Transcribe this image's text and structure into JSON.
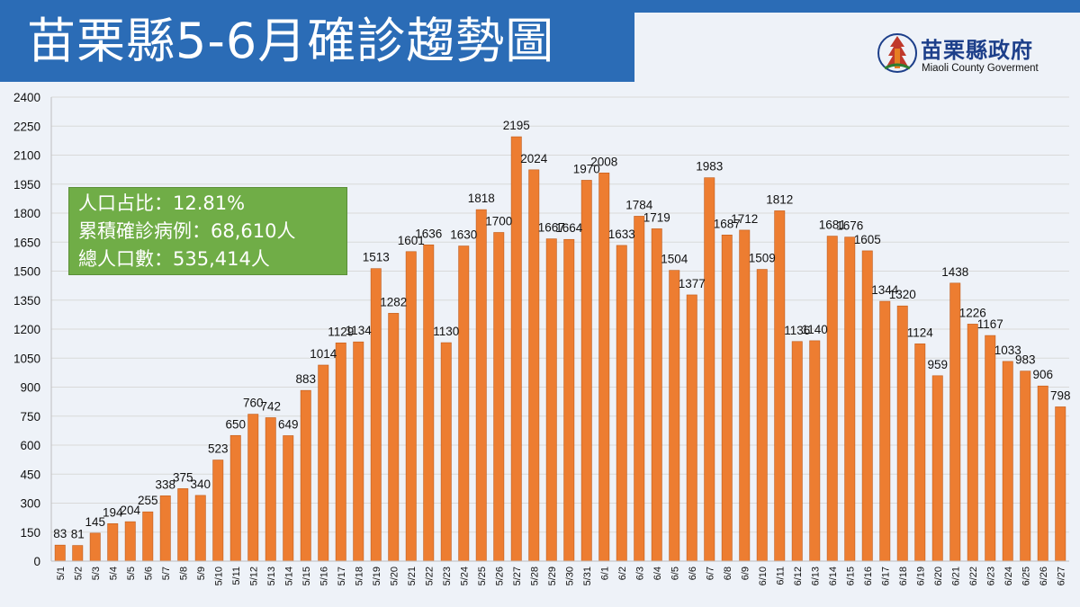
{
  "header": {
    "title": "苗栗縣5-6月確診趨勢圖",
    "logo_cn": "苗栗縣政府",
    "logo_en": "Miaoli County Goverment"
  },
  "info_box": {
    "line1": "人口占比：12.81%",
    "line2": "累積確診病例：68,610人",
    "line3": "總人口數：535,414人"
  },
  "colors": {
    "bar": "#ed7d31",
    "bar_stroke": "#c05a18",
    "title_bg": "#2b6cb6",
    "info_bg": "#70ad47",
    "grid": "#d9d9d9"
  },
  "chart_data": {
    "type": "bar",
    "title": "",
    "xlabel": "",
    "ylabel": "",
    "ylim": [
      0,
      2400
    ],
    "yticks": [
      0,
      150,
      300,
      450,
      600,
      750,
      900,
      1050,
      1200,
      1350,
      1500,
      1650,
      1800,
      1950,
      2100,
      2250,
      2400
    ],
    "grid": true,
    "categories": [
      "5/1",
      "5/2",
      "5/3",
      "5/4",
      "5/5",
      "5/6",
      "5/7",
      "5/8",
      "5/9",
      "5/10",
      "5/11",
      "5/12",
      "5/13",
      "5/14",
      "5/15",
      "5/16",
      "5/17",
      "5/18",
      "5/19",
      "5/20",
      "5/21",
      "5/22",
      "5/23",
      "5/24",
      "5/25",
      "5/26",
      "5/27",
      "5/28",
      "5/29",
      "5/30",
      "5/31",
      "6/1",
      "6/2",
      "6/3",
      "6/4",
      "6/5",
      "6/6",
      "6/7",
      "6/8",
      "6/9",
      "6/10",
      "6/11",
      "6/12",
      "6/13",
      "6/14",
      "6/15",
      "6/16",
      "6/17",
      "6/18",
      "6/19",
      "6/20",
      "6/21",
      "6/22",
      "6/23",
      "6/24",
      "6/25",
      "6/26",
      "6/27"
    ],
    "values": [
      83,
      81,
      145,
      194,
      204,
      255,
      338,
      375,
      340,
      523,
      650,
      760,
      742,
      649,
      883,
      1014,
      1129,
      1134,
      1513,
      1282,
      1601,
      1636,
      1130,
      1630,
      1818,
      1700,
      2195,
      2024,
      1667,
      1664,
      1970,
      2008,
      1633,
      1784,
      1719,
      1504,
      1377,
      1983,
      1687,
      1712,
      1509,
      1812,
      1136,
      1140,
      1681,
      1676,
      1605,
      1344,
      1320,
      1124,
      959,
      1438,
      1226,
      1167,
      1033,
      983,
      906,
      798
    ]
  }
}
